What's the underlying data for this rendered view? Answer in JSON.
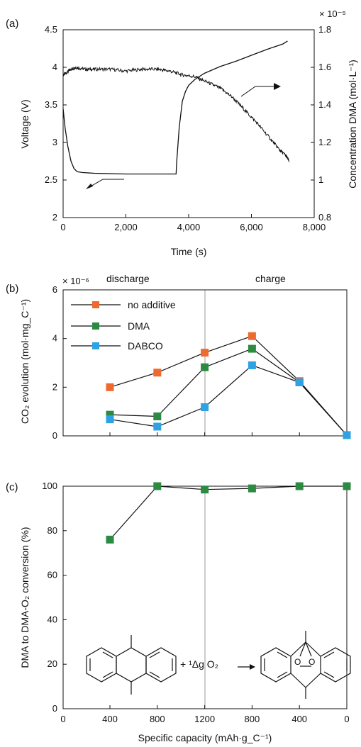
{
  "chart_data": [
    {
      "panel": "(a)",
      "type": "line",
      "xlabel": "Time (s)",
      "ylabel": "Voltage (V)",
      "ylabel_right": "Concentration DMA (mol·L⁻¹)",
      "right_exponent": "× 10⁻⁵",
      "xlim": [
        0,
        8000
      ],
      "ylim": [
        2,
        4.5
      ],
      "ylim_right": [
        0.8,
        1.8
      ],
      "xticks": [
        "0",
        "2,000",
        "4,000",
        "6,000",
        "8,000"
      ],
      "yticks": [
        "2",
        "2.5",
        "3",
        "3.5",
        "4",
        "4.5"
      ],
      "yticks_right": [
        "0.8",
        "1",
        "1.2",
        "1.4",
        "1.6",
        "1.8"
      ],
      "grid": false,
      "series": [
        {
          "axis": "left",
          "x": [
            0,
            60,
            150,
            250,
            350,
            450,
            600,
            1000,
            2000,
            3000,
            3600,
            3620,
            3700,
            3800,
            3900,
            4000,
            4200,
            4500,
            5000,
            5500,
            6000,
            6500,
            7000,
            7150
          ],
          "y": [
            3.45,
            3.2,
            2.95,
            2.75,
            2.65,
            2.61,
            2.6,
            2.59,
            2.58,
            2.58,
            2.58,
            2.75,
            3.2,
            3.55,
            3.68,
            3.76,
            3.84,
            3.92,
            4.01,
            4.08,
            4.16,
            4.24,
            4.31,
            4.35
          ]
        },
        {
          "axis": "right",
          "x": [
            0,
            100,
            250,
            400,
            700,
            1000,
            1500,
            2000,
            2500,
            3000,
            3400,
            3800,
            4200,
            4600,
            5000,
            5400,
            5800,
            6200,
            6600,
            6900,
            7100,
            7200
          ],
          "y": [
            1.56,
            1.57,
            1.59,
            1.6,
            1.59,
            1.59,
            1.59,
            1.58,
            1.59,
            1.59,
            1.58,
            1.56,
            1.55,
            1.52,
            1.49,
            1.44,
            1.37,
            1.3,
            1.22,
            1.16,
            1.13,
            1.1
          ]
        }
      ]
    },
    {
      "panel": "(b)",
      "type": "line",
      "ylabel": "CO₂ evolution (mol·mg_C⁻¹)",
      "y_exponent": "× 10⁻⁶",
      "regions": [
        "discharge",
        "charge"
      ],
      "ylim": [
        0,
        6
      ],
      "yticks": [
        "0",
        "2",
        "4",
        "6"
      ],
      "categories": [
        "400",
        "800",
        "1200",
        "800",
        "400",
        "0"
      ],
      "legend": "top-left",
      "series": [
        {
          "name": "no additive",
          "color": "#ee6a2e",
          "values": [
            2.0,
            2.6,
            3.42,
            4.1,
            2.25,
            0.03
          ]
        },
        {
          "name": "DMA",
          "color": "#2c8a43",
          "values": [
            0.87,
            0.8,
            2.82,
            3.58,
            2.2,
            0.03
          ]
        },
        {
          "name": "DABCO",
          "color": "#2ea2e2",
          "values": [
            0.68,
            0.38,
            1.18,
            2.9,
            2.2,
            0.03
          ]
        }
      ]
    },
    {
      "panel": "(c)",
      "type": "line",
      "xlabel": "Specific capacity (mAh·g_C⁻¹)",
      "ylabel": "DMA to DMA-O₂ conversion (%)",
      "ylim": [
        0,
        100
      ],
      "yticks": [
        "0",
        "20",
        "40",
        "60",
        "80",
        "100"
      ],
      "xticks": [
        "0",
        "400",
        "800",
        "1200",
        "800",
        "400",
        "0"
      ],
      "series": [
        {
          "name": "DMA",
          "color": "#2c8a43",
          "values": [
            76,
            100,
            98.5,
            99,
            100,
            100
          ]
        }
      ],
      "reaction": {
        "reagent": "+ ¹Δg O₂"
      }
    }
  ]
}
